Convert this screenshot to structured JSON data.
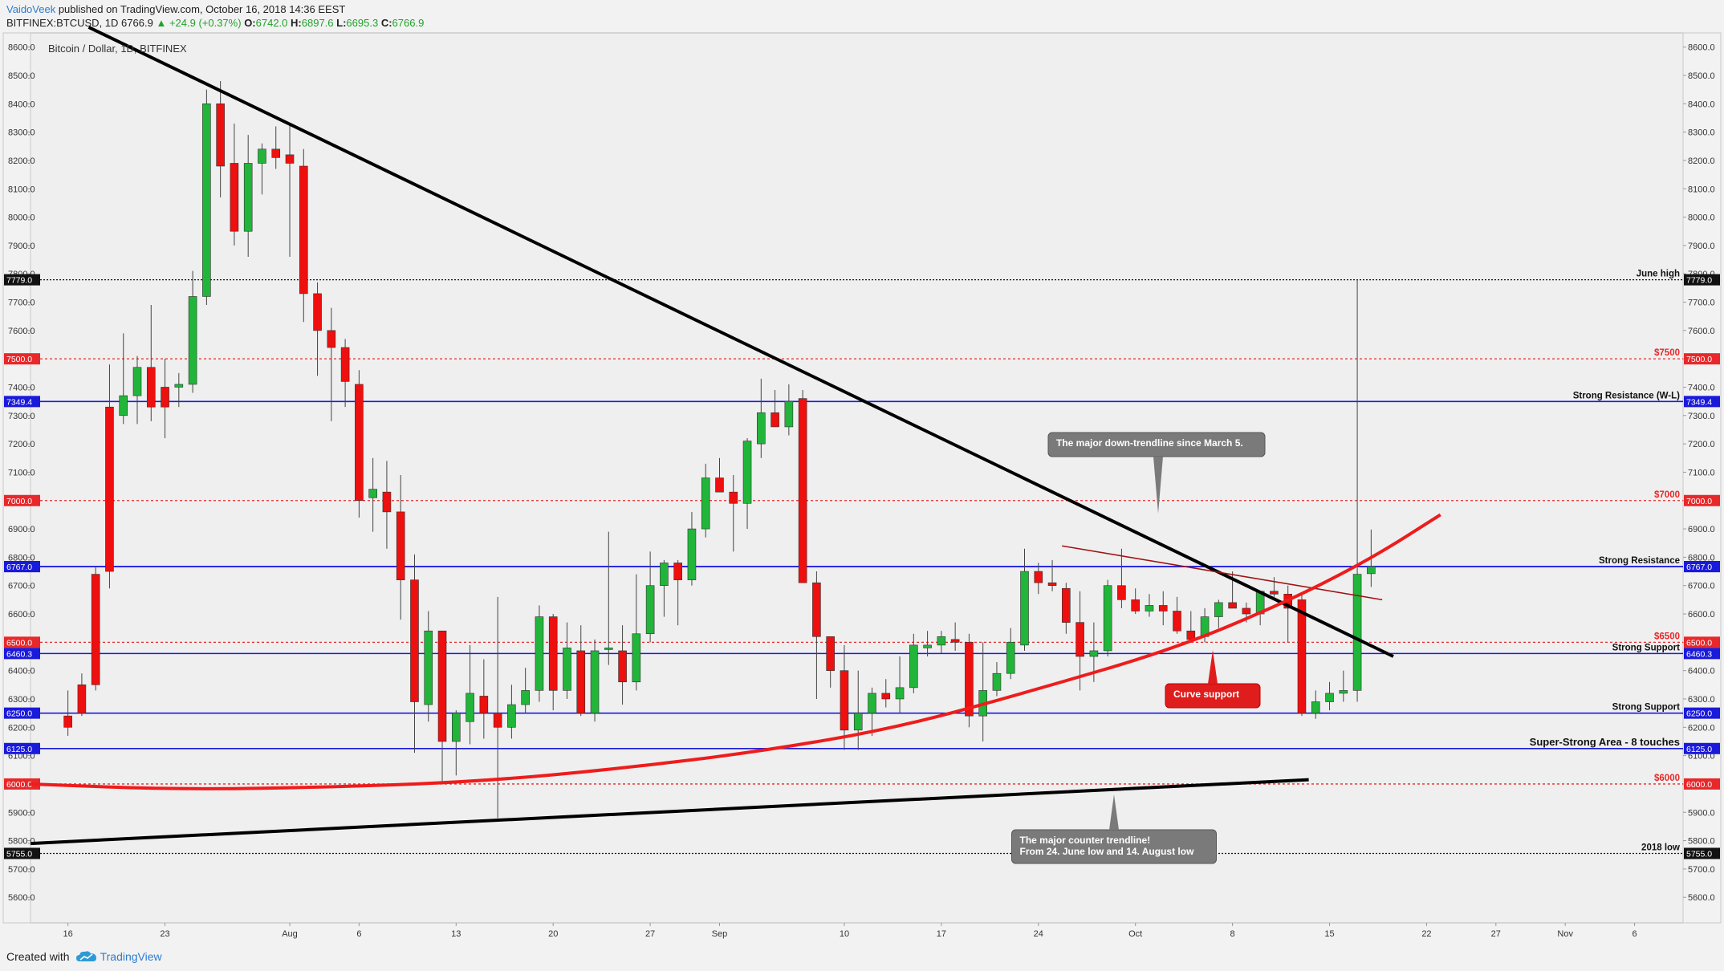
{
  "header": {
    "user": "VaidoVeek",
    "published_text": "published on TradingView.com, October 16, 2018 14:36 EEST",
    "symbol": "BITFINEX:BTCUSD, 1D",
    "last": "6766.9",
    "change": "+24.9 (+0.37%)",
    "o_label": "O:",
    "o": "6742.0",
    "h_label": "H:",
    "h": "6897.6",
    "l_label": "L:",
    "l": "6695.3",
    "c_label": "C:",
    "c": "6766.9"
  },
  "chart_title": "Bitcoin / Dollar, 1D, BITFINEX",
  "footer": {
    "created_with": "Created with",
    "brand": "TradingView"
  },
  "colors": {
    "up": "#21b53a",
    "down": "#ee0f0f",
    "blue_line": "#1a1adb",
    "red_dotted": "#e8282a",
    "trend_black": "#000000",
    "curve_red": "#ee1c1c",
    "callout_gray": "#7a7a7a",
    "callout_red": "#e01d1d"
  },
  "chart_data": {
    "type": "candlestick",
    "y_ticks": [
      5600,
      5700,
      5800,
      5900,
      6000,
      6100,
      6200,
      6300,
      6400,
      6500,
      6600,
      6700,
      6800,
      6900,
      7000,
      7100,
      7200,
      7300,
      7400,
      7500,
      7600,
      7700,
      7800,
      7900,
      8000,
      8100,
      8200,
      8300,
      8400,
      8500,
      8600
    ],
    "y_tick_labels": [
      "5600.0",
      "5700.0",
      "5800.0",
      "5900.0",
      "6000.0",
      "6100.0",
      "6200.0",
      "6300.0",
      "6400.0",
      "6500.0",
      "6600.0",
      "6700.0",
      "6800.0",
      "6900.0",
      "7000.0",
      "7100.0",
      "7200.0",
      "7300.0",
      "7400.0",
      "7500.0",
      "7600.0",
      "7700.0",
      "7800.0",
      "7900.0",
      "8000.0",
      "8100.0",
      "8200.0",
      "8300.0",
      "8400.0",
      "8500.0",
      "8600.0"
    ],
    "y_range": [
      5510,
      8650
    ],
    "x_ticks": [
      {
        "label": "16",
        "day": 0
      },
      {
        "label": "23",
        "day": 7
      },
      {
        "label": "Aug",
        "day": 16
      },
      {
        "label": "6",
        "day": 21
      },
      {
        "label": "13",
        "day": 28
      },
      {
        "label": "20",
        "day": 35
      },
      {
        "label": "27",
        "day": 42
      },
      {
        "label": "Sep",
        "day": 47
      },
      {
        "label": "10",
        "day": 56
      },
      {
        "label": "17",
        "day": 63
      },
      {
        "label": "24",
        "day": 70
      },
      {
        "label": "Oct",
        "day": 77
      },
      {
        "label": "8",
        "day": 84
      },
      {
        "label": "15",
        "day": 91
      },
      {
        "label": "22",
        "day": 98
      },
      {
        "label": "27",
        "day": 103
      },
      {
        "label": "Nov",
        "day": 108
      },
      {
        "label": "6",
        "day": 113
      }
    ],
    "x_range_days": [
      -2.7,
      116.5
    ],
    "start_date": "2018-07-16",
    "candles": [
      [
        6240,
        6330,
        6170,
        6200
      ],
      [
        6350,
        6390,
        6240,
        6250
      ],
      [
        6740,
        6770,
        6330,
        6350
      ],
      [
        7330,
        7480,
        6690,
        6750
      ],
      [
        7300,
        7590,
        7270,
        7370
      ],
      [
        7370,
        7510,
        7270,
        7470
      ],
      [
        7470,
        7690,
        7280,
        7330
      ],
      [
        7400,
        7500,
        7220,
        7330
      ],
      [
        7400,
        7450,
        7330,
        7410
      ],
      [
        7410,
        7810,
        7380,
        7720
      ],
      [
        7720,
        8450,
        7690,
        8400
      ],
      [
        8400,
        8480,
        8070,
        8180
      ],
      [
        8190,
        8330,
        7900,
        7950
      ],
      [
        7950,
        8290,
        7860,
        8190
      ],
      [
        8190,
        8260,
        8080,
        8240
      ],
      [
        8240,
        8320,
        8170,
        8210
      ],
      [
        8220,
        8330,
        7860,
        8190
      ],
      [
        8180,
        8240,
        7630,
        7730
      ],
      [
        7730,
        7770,
        7440,
        7600
      ],
      [
        7600,
        7680,
        7280,
        7540
      ],
      [
        7540,
        7570,
        7330,
        7420
      ],
      [
        7410,
        7460,
        6940,
        7000
      ],
      [
        7010,
        7150,
        6890,
        7040
      ],
      [
        7030,
        7140,
        6830,
        6960
      ],
      [
        6960,
        7090,
        6580,
        6720
      ],
      [
        6720,
        6810,
        6110,
        6290
      ],
      [
        6280,
        6610,
        6220,
        6540
      ],
      [
        6540,
        6540,
        6010,
        6150
      ],
      [
        6150,
        6260,
        6030,
        6250
      ],
      [
        6220,
        6490,
        6140,
        6320
      ],
      [
        6310,
        6440,
        6160,
        6250
      ],
      [
        6250,
        6660,
        5880,
        6200
      ],
      [
        6200,
        6350,
        6160,
        6280
      ],
      [
        6280,
        6410,
        6250,
        6330
      ],
      [
        6330,
        6630,
        6290,
        6590
      ],
      [
        6590,
        6600,
        6260,
        6330
      ],
      [
        6330,
        6570,
        6300,
        6480
      ],
      [
        6470,
        6560,
        6240,
        6250
      ],
      [
        6250,
        6510,
        6220,
        6470
      ],
      [
        6480,
        6890,
        6420,
        6480
      ],
      [
        6470,
        6560,
        6280,
        6360
      ],
      [
        6360,
        6740,
        6330,
        6530
      ],
      [
        6530,
        6820,
        6500,
        6700
      ],
      [
        6700,
        6790,
        6590,
        6780
      ],
      [
        6780,
        6790,
        6560,
        6720
      ],
      [
        6720,
        6960,
        6700,
        6900
      ],
      [
        6900,
        7130,
        6870,
        7080
      ],
      [
        7080,
        7150,
        7050,
        7030
      ],
      [
        7030,
        7090,
        6820,
        6990
      ],
      [
        6990,
        7220,
        6900,
        7210
      ],
      [
        7200,
        7430,
        7150,
        7310
      ],
      [
        7310,
        7390,
        7270,
        7260
      ],
      [
        7260,
        7410,
        7230,
        7350
      ],
      [
        7360,
        7390,
        6720,
        6710
      ],
      [
        6710,
        6750,
        6300,
        6520
      ],
      [
        6520,
        6500,
        6340,
        6400
      ],
      [
        6400,
        6490,
        6120,
        6190
      ],
      [
        6190,
        6400,
        6120,
        6250
      ],
      [
        6250,
        6340,
        6170,
        6320
      ],
      [
        6320,
        6370,
        6270,
        6300
      ],
      [
        6300,
        6450,
        6250,
        6340
      ],
      [
        6340,
        6530,
        6320,
        6490
      ],
      [
        6480,
        6540,
        6450,
        6490
      ],
      [
        6490,
        6540,
        6460,
        6520
      ],
      [
        6510,
        6570,
        6470,
        6500
      ],
      [
        6500,
        6530,
        6200,
        6240
      ],
      [
        6240,
        6500,
        6150,
        6330
      ],
      [
        6330,
        6430,
        6310,
        6390
      ],
      [
        6390,
        6550,
        6370,
        6500
      ],
      [
        6490,
        6830,
        6470,
        6750
      ],
      [
        6750,
        6780,
        6670,
        6710
      ],
      [
        6710,
        6790,
        6680,
        6700
      ],
      [
        6690,
        6710,
        6530,
        6570
      ],
      [
        6570,
        6680,
        6330,
        6450
      ],
      [
        6450,
        6570,
        6360,
        6470
      ],
      [
        6470,
        6720,
        6450,
        6700
      ],
      [
        6700,
        6830,
        6620,
        6650
      ],
      [
        6650,
        6690,
        6600,
        6610
      ],
      [
        6610,
        6670,
        6590,
        6630
      ],
      [
        6630,
        6680,
        6560,
        6610
      ],
      [
        6610,
        6660,
        6530,
        6540
      ],
      [
        6540,
        6610,
        6500,
        6510
      ],
      [
        6520,
        6620,
        6500,
        6590
      ],
      [
        6590,
        6650,
        6550,
        6640
      ],
      [
        6640,
        6750,
        6620,
        6620
      ],
      [
        6620,
        6640,
        6570,
        6600
      ],
      [
        6600,
        6660,
        6560,
        6680
      ],
      [
        6680,
        6730,
        6660,
        6670
      ],
      [
        6670,
        6700,
        6500,
        6620
      ],
      [
        6650,
        6670,
        6240,
        6250
      ],
      [
        6250,
        6330,
        6230,
        6290
      ],
      [
        6290,
        6360,
        6260,
        6320
      ],
      [
        6320,
        6400,
        6290,
        6330
      ],
      [
        6330,
        7780,
        6290,
        6740
      ],
      [
        6742,
        6897.6,
        6695.3,
        6766.9
      ]
    ],
    "horizontal_levels": [
      {
        "value": 7779,
        "label": "June high",
        "tag": "7779.0",
        "style": "black-dotted"
      },
      {
        "value": 7500,
        "label": "$7500",
        "tag": "7500.0",
        "style": "red-dotted"
      },
      {
        "value": 7349.4,
        "label": "Strong Resistance (W-L)",
        "tag": "7349.4",
        "style": "blue"
      },
      {
        "value": 7000,
        "label": "$7000",
        "tag": "7000.0",
        "style": "red-dotted"
      },
      {
        "value": 6766.9,
        "label": "",
        "tag": "6766.9",
        "style": "blue"
      },
      {
        "value": 6767,
        "label": "Strong Resistance",
        "tag": "6767.0",
        "style": "blue"
      },
      {
        "value": 6500,
        "label": "$6500",
        "tag": "6500.0",
        "style": "red-dotted"
      },
      {
        "value": 6460.3,
        "label": "Strong Support",
        "tag": "6460.3",
        "style": "blue"
      },
      {
        "value": 6250,
        "label": "Strong Support",
        "tag": "6250.0",
        "style": "blue"
      },
      {
        "value": 6125,
        "label": "Super-Strong Area - 8 touches",
        "tag": "6125.0",
        "style": "blue"
      },
      {
        "value": 6000,
        "label": "$6000",
        "tag": "6000.0",
        "style": "red-dotted"
      },
      {
        "value": 5755,
        "label": "2018 low",
        "tag": "5755.0",
        "style": "black-dotted"
      }
    ],
    "trendlines": [
      {
        "name": "major-downtrend",
        "from": [
          1.5,
          8670
        ],
        "to": [
          95.6,
          6450
        ]
      },
      {
        "name": "counter-trendline",
        "from": [
          -2.7,
          5790
        ],
        "to": [
          89.5,
          6015
        ]
      },
      {
        "name": "small-downtrend",
        "from": [
          71.7,
          6840
        ],
        "to": [
          94.8,
          6650
        ]
      }
    ],
    "curve_support": [
      [
        -2.7,
        6000
      ],
      [
        8,
        5980
      ],
      [
        20,
        5990
      ],
      [
        30,
        6010
      ],
      [
        40,
        6055
      ],
      [
        50,
        6115
      ],
      [
        60,
        6200
      ],
      [
        70,
        6335
      ],
      [
        80,
        6480
      ],
      [
        88,
        6645
      ],
      [
        94,
        6795
      ],
      [
        99,
        6950
      ]
    ],
    "annotations": {
      "downtrend_note": "The major down-trendline since March 5.",
      "counter_note_line1": "The major counter trendline!",
      "counter_note_line2": "From 24. June low and 14. August low",
      "curve_note": "Curve support"
    }
  }
}
